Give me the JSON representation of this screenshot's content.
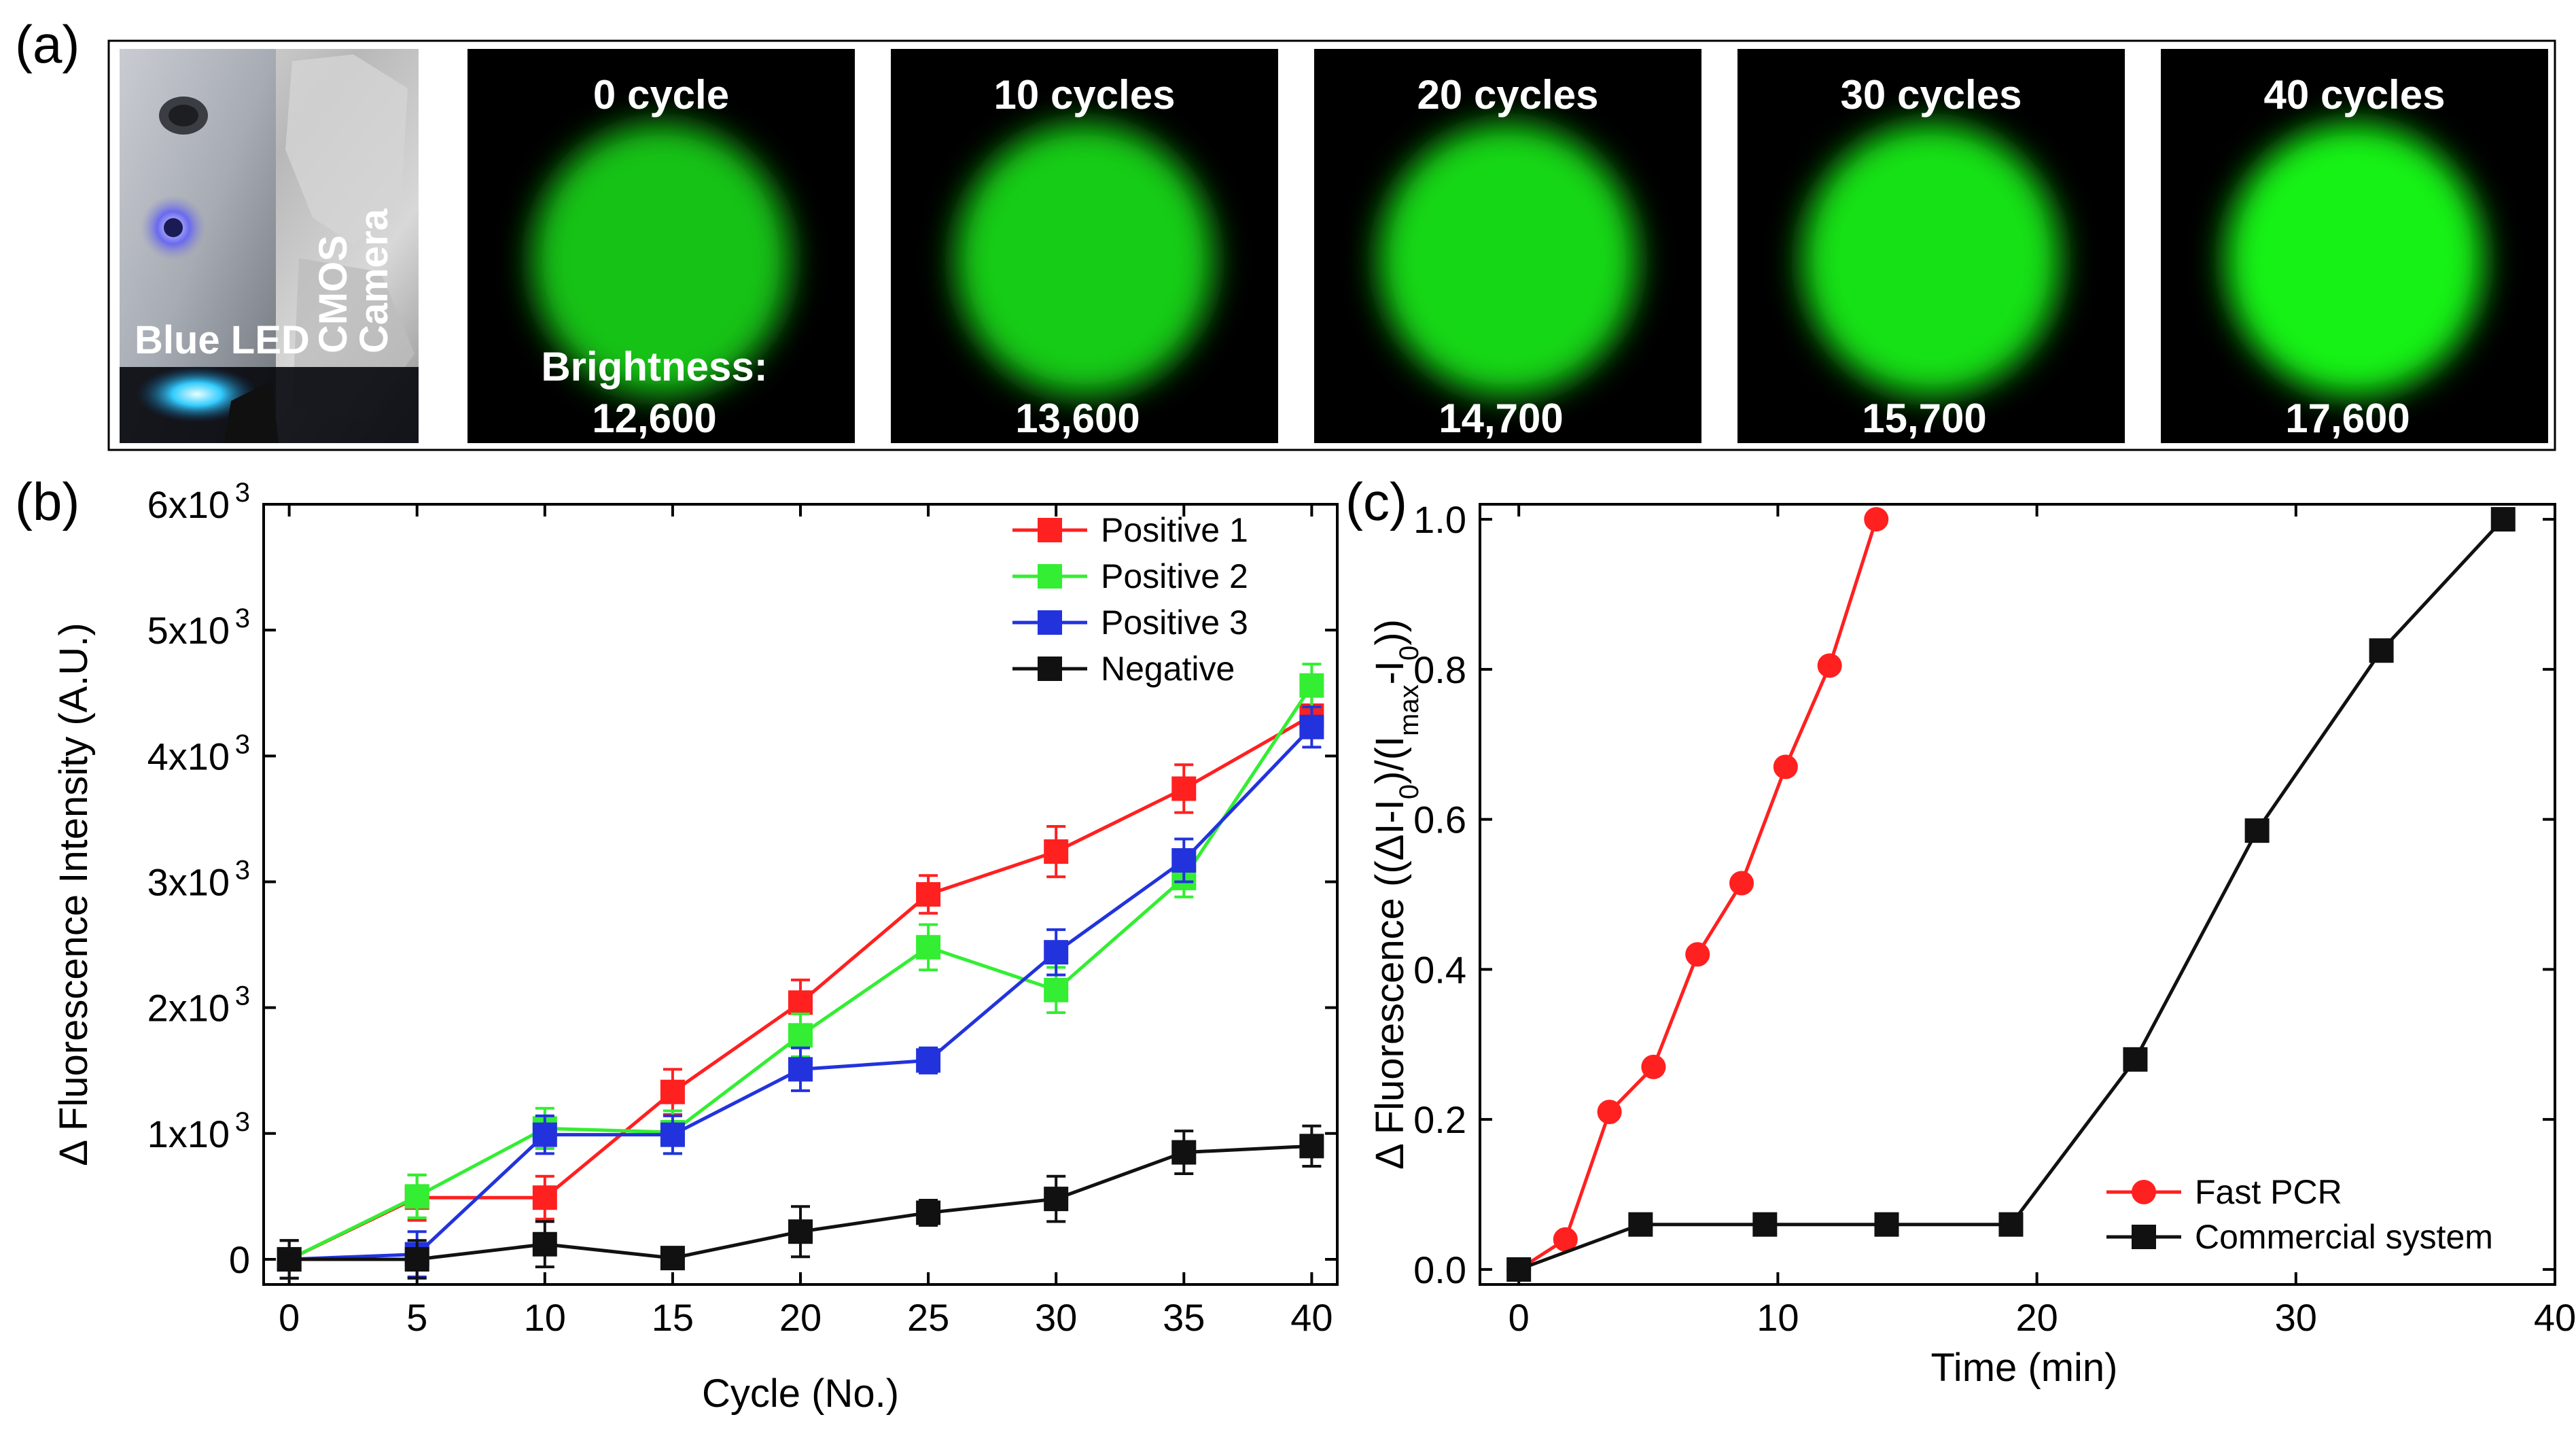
{
  "panels": {
    "a": {
      "label": "(a)",
      "photo": {
        "led_label": "Blue LED",
        "camera_label_1": "CMOS",
        "camera_label_2": "Camera"
      },
      "images": [
        {
          "title": "0 cycle",
          "brightness_prefix": "Brightness:",
          "brightness": "12,600",
          "intensity": 0.55
        },
        {
          "title": "10 cycles",
          "brightness_prefix": "",
          "brightness": "13,600",
          "intensity": 0.62
        },
        {
          "title": "20 cycles",
          "brightness_prefix": "",
          "brightness": "14,700",
          "intensity": 0.7
        },
        {
          "title": "30 cycles",
          "brightness_prefix": "",
          "brightness": "15,700",
          "intensity": 0.78
        },
        {
          "title": "40 cycles",
          "brightness_prefix": "",
          "brightness": "17,600",
          "intensity": 0.9
        }
      ]
    },
    "b": {
      "label": "(b)"
    },
    "c": {
      "label": "(c)"
    }
  },
  "chart_data": [
    {
      "panel": "b",
      "type": "line",
      "title": "",
      "xlabel": "Cycle (No.)",
      "ylabel": "Δ Fluorescence Intensity (A.U.)",
      "xlim": [
        -1,
        41
      ],
      "ylim": [
        -200,
        6000
      ],
      "x_ticks": [
        0,
        5,
        10,
        15,
        20,
        25,
        30,
        35,
        40
      ],
      "x_tick_labels": [
        "0",
        "5",
        "10",
        "15",
        "20",
        "25",
        "30",
        "35",
        "40"
      ],
      "y_ticks": [
        0,
        1000,
        2000,
        3000,
        4000,
        5000,
        6000
      ],
      "y_tick_labels": [
        "0",
        "1x10",
        "2x10",
        "3x10",
        "4x10",
        "5x10",
        "6x10"
      ],
      "y_tick_exponent": "3",
      "legend_position": "top-right",
      "series": [
        {
          "name": "Positive 1",
          "color": "#ff2020",
          "x": [
            0,
            5,
            10,
            15,
            20,
            25,
            30,
            35,
            40
          ],
          "y": [
            0,
            490,
            490,
            1330,
            2040,
            2900,
            3240,
            3740,
            4320
          ],
          "err": [
            150,
            180,
            170,
            180,
            180,
            150,
            200,
            190,
            170
          ]
        },
        {
          "name": "Positive 2",
          "color": "#33ee33",
          "x": [
            0,
            5,
            10,
            15,
            20,
            25,
            30,
            35,
            40
          ],
          "y": [
            0,
            500,
            1040,
            1010,
            1780,
            2480,
            2140,
            3030,
            4560
          ],
          "err": [
            150,
            170,
            160,
            170,
            170,
            180,
            180,
            150,
            170
          ]
        },
        {
          "name": "Positive 3",
          "color": "#2233dd",
          "x": [
            0,
            5,
            10,
            15,
            20,
            25,
            30,
            35,
            40
          ],
          "y": [
            0,
            40,
            990,
            990,
            1510,
            1580,
            2440,
            3170,
            4230
          ],
          "err": [
            150,
            180,
            150,
            150,
            170,
            100,
            180,
            170,
            160
          ]
        },
        {
          "name": "Negative",
          "color": "#111111",
          "x": [
            0,
            5,
            10,
            15,
            20,
            25,
            30,
            35,
            40
          ],
          "y": [
            0,
            0,
            120,
            10,
            220,
            370,
            480,
            850,
            900
          ],
          "err": [
            150,
            150,
            180,
            60,
            200,
            100,
            180,
            170,
            160
          ]
        }
      ]
    },
    {
      "panel": "c",
      "type": "line",
      "title": "",
      "xlabel": "Time (min)",
      "ylabel_parts": [
        "Δ Fluorescence ((ΔI-I",
        "0",
        ")/(I",
        "max",
        "-I",
        "0",
        "))"
      ],
      "xlim": [
        -1.5,
        40
      ],
      "ylim": [
        -0.02,
        1.02
      ],
      "x_ticks": [
        0,
        10,
        20,
        30,
        40
      ],
      "x_tick_labels": [
        "0",
        "10",
        "20",
        "30",
        "40"
      ],
      "y_ticks": [
        0,
        0.2,
        0.4,
        0.6,
        0.8,
        1.0
      ],
      "y_tick_labels": [
        "0.0",
        "0.2",
        "0.4",
        "0.6",
        "0.8",
        "1.0"
      ],
      "legend_position": "bottom-right",
      "series": [
        {
          "name": "Fast PCR",
          "color": "#ff2020",
          "marker": "circle",
          "x": [
            0,
            1.8,
            3.5,
            5.2,
            6.9,
            8.6,
            10.3,
            12.0,
            13.8
          ],
          "y": [
            0,
            0.04,
            0.21,
            0.27,
            0.42,
            0.515,
            0.67,
            0.805,
            1.0
          ]
        },
        {
          "name": "Commercial system",
          "color": "#111111",
          "marker": "square",
          "x": [
            0,
            4.7,
            9.5,
            14.2,
            19.0,
            23.8,
            28.5,
            33.3,
            38.0
          ],
          "y": [
            0,
            0.06,
            0.06,
            0.06,
            0.06,
            0.28,
            0.585,
            0.825,
            1.0
          ]
        }
      ]
    }
  ]
}
